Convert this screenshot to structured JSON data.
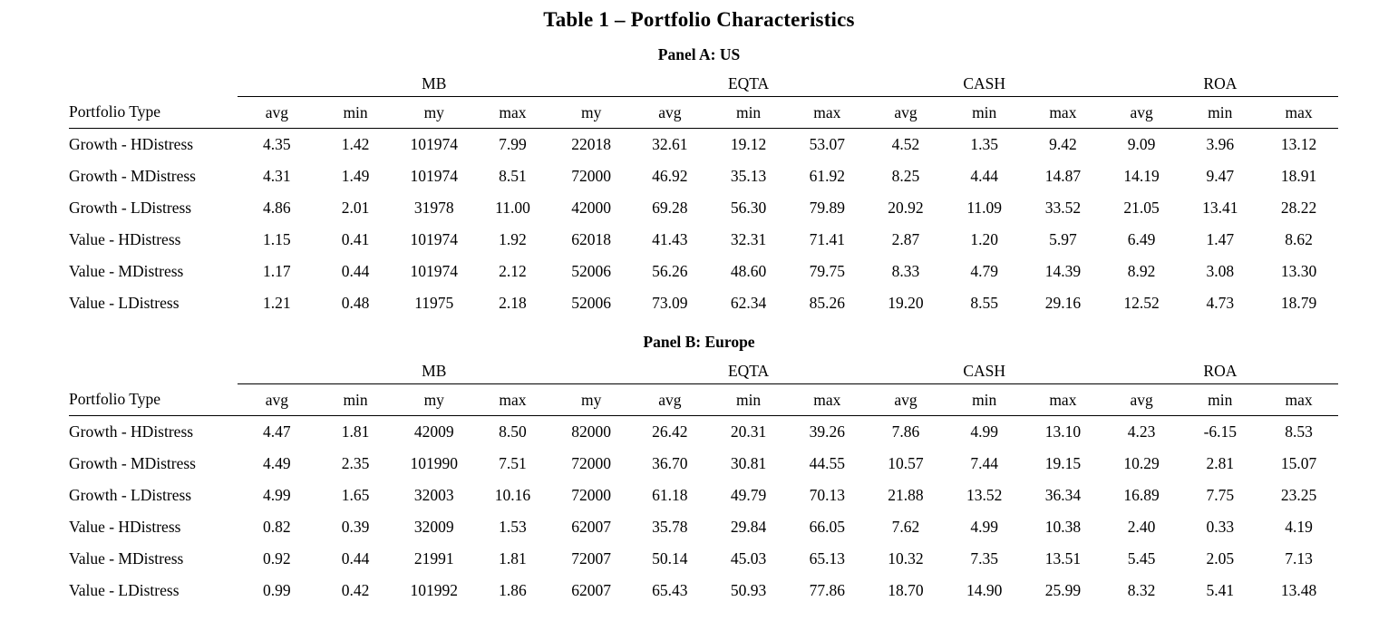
{
  "title": "Table 1 – Portfolio Characteristics",
  "panels": [
    {
      "label": "Panel A: US",
      "row_header": "Portfolio Type",
      "groups": [
        {
          "label": "MB"
        },
        {
          "label": "EQTA"
        },
        {
          "label": "CASH"
        },
        {
          "label": "ROA"
        }
      ],
      "sub_headers": [
        "avg",
        "min",
        "my",
        "max",
        "my",
        "avg",
        "min",
        "max",
        "avg",
        "min",
        "max",
        "avg",
        "min",
        "max"
      ],
      "rows": [
        {
          "label": "Growth - HDistress",
          "values": [
            "4.35",
            "1.42",
            "101974",
            "7.99",
            "22018",
            "32.61",
            "19.12",
            "53.07",
            "4.52",
            "1.35",
            "9.42",
            "9.09",
            "3.96",
            "13.12"
          ]
        },
        {
          "label": "Growth - MDistress",
          "values": [
            "4.31",
            "1.49",
            "101974",
            "8.51",
            "72000",
            "46.92",
            "35.13",
            "61.92",
            "8.25",
            "4.44",
            "14.87",
            "14.19",
            "9.47",
            "18.91"
          ]
        },
        {
          "label": "Growth - LDistress",
          "values": [
            "4.86",
            "2.01",
            "31978",
            "11.00",
            "42000",
            "69.28",
            "56.30",
            "79.89",
            "20.92",
            "11.09",
            "33.52",
            "21.05",
            "13.41",
            "28.22"
          ]
        },
        {
          "label": "Value - HDistress",
          "values": [
            "1.15",
            "0.41",
            "101974",
            "1.92",
            "62018",
            "41.43",
            "32.31",
            "71.41",
            "2.87",
            "1.20",
            "5.97",
            "6.49",
            "1.47",
            "8.62"
          ]
        },
        {
          "label": "Value - MDistress",
          "values": [
            "1.17",
            "0.44",
            "101974",
            "2.12",
            "52006",
            "56.26",
            "48.60",
            "79.75",
            "8.33",
            "4.79",
            "14.39",
            "8.92",
            "3.08",
            "13.30"
          ]
        },
        {
          "label": "Value - LDistress",
          "values": [
            "1.21",
            "0.48",
            "11975",
            "2.18",
            "52006",
            "73.09",
            "62.34",
            "85.26",
            "19.20",
            "8.55",
            "29.16",
            "12.52",
            "4.73",
            "18.79"
          ]
        }
      ]
    },
    {
      "label": "Panel B: Europe",
      "row_header": "Portfolio Type",
      "groups": [
        {
          "label": "MB"
        },
        {
          "label": "EQTA"
        },
        {
          "label": "CASH"
        },
        {
          "label": "ROA"
        }
      ],
      "sub_headers": [
        "avg",
        "min",
        "my",
        "max",
        "my",
        "avg",
        "min",
        "max",
        "avg",
        "min",
        "max",
        "avg",
        "min",
        "max"
      ],
      "rows": [
        {
          "label": "Growth - HDistress",
          "values": [
            "4.47",
            "1.81",
            "42009",
            "8.50",
            "82000",
            "26.42",
            "20.31",
            "39.26",
            "7.86",
            "4.99",
            "13.10",
            "4.23",
            "-6.15",
            "8.53"
          ]
        },
        {
          "label": "Growth - MDistress",
          "values": [
            "4.49",
            "2.35",
            "101990",
            "7.51",
            "72000",
            "36.70",
            "30.81",
            "44.55",
            "10.57",
            "7.44",
            "19.15",
            "10.29",
            "2.81",
            "15.07"
          ]
        },
        {
          "label": "Growth - LDistress",
          "values": [
            "4.99",
            "1.65",
            "32003",
            "10.16",
            "72000",
            "61.18",
            "49.79",
            "70.13",
            "21.88",
            "13.52",
            "36.34",
            "16.89",
            "7.75",
            "23.25"
          ]
        },
        {
          "label": "Value - HDistress",
          "values": [
            "0.82",
            "0.39",
            "32009",
            "1.53",
            "62007",
            "35.78",
            "29.84",
            "66.05",
            "7.62",
            "4.99",
            "10.38",
            "2.40",
            "0.33",
            "4.19"
          ]
        },
        {
          "label": "Value - MDistress",
          "values": [
            "0.92",
            "0.44",
            "21991",
            "1.81",
            "72007",
            "50.14",
            "45.03",
            "65.13",
            "10.32",
            "7.35",
            "13.51",
            "5.45",
            "2.05",
            "7.13"
          ]
        },
        {
          "label": "Value - LDistress",
          "values": [
            "0.99",
            "0.42",
            "101992",
            "1.86",
            "62007",
            "65.43",
            "50.93",
            "77.86",
            "18.70",
            "14.90",
            "25.99",
            "8.32",
            "5.41",
            "13.48"
          ]
        }
      ]
    }
  ]
}
